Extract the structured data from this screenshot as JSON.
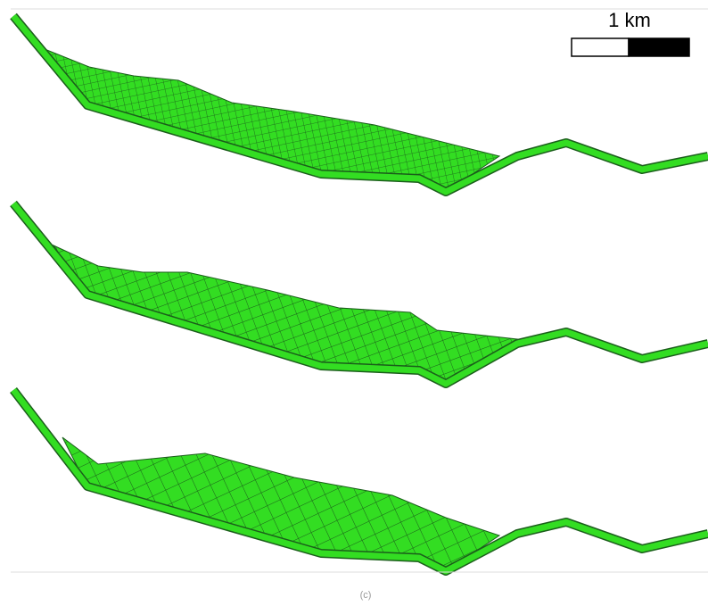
{
  "scale_bar": {
    "label": "1 km"
  },
  "caption": "(c)"
}
